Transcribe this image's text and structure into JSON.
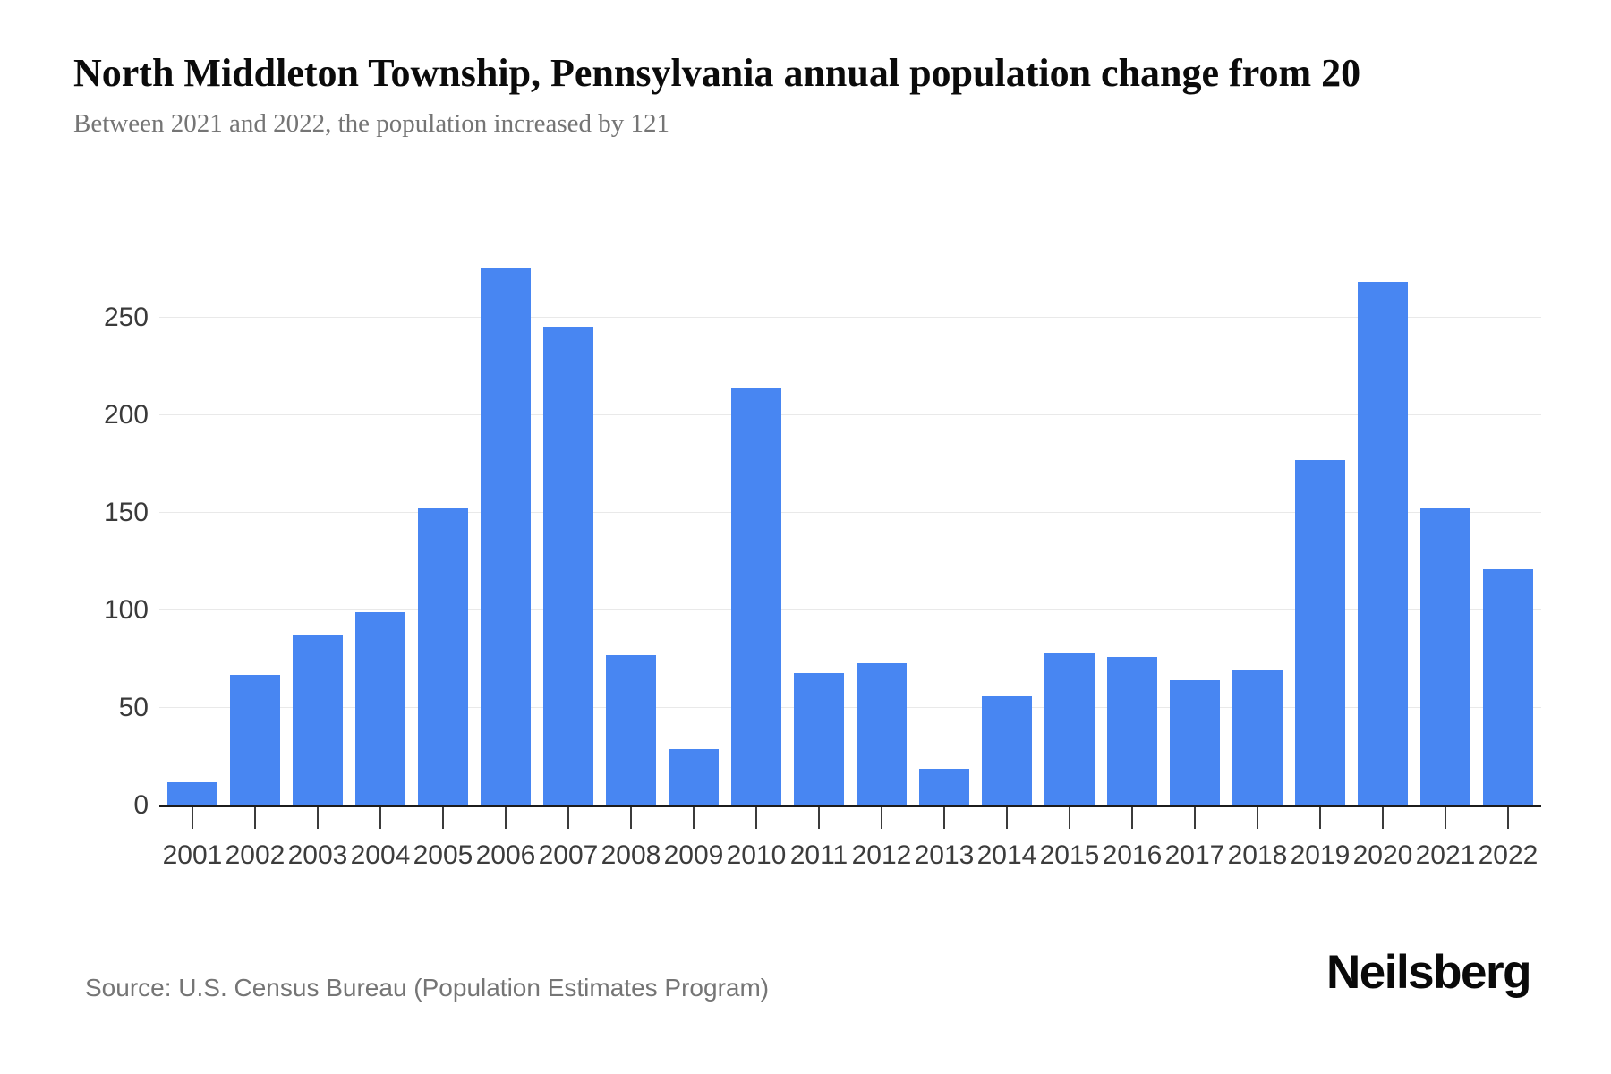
{
  "header": {
    "title": "North Middleton Township, Pennsylvania annual population change from 20",
    "subtitle": "Between 2021 and 2022, the population increased by 121"
  },
  "chart_data": {
    "type": "bar",
    "categories": [
      "2001",
      "2002",
      "2003",
      "2004",
      "2005",
      "2006",
      "2007",
      "2008",
      "2009",
      "2010",
      "2011",
      "2012",
      "2013",
      "2014",
      "2015",
      "2016",
      "2017",
      "2018",
      "2019",
      "2020",
      "2021",
      "2022"
    ],
    "values": [
      12,
      67,
      87,
      99,
      152,
      275,
      245,
      77,
      29,
      214,
      68,
      73,
      19,
      56,
      78,
      76,
      64,
      69,
      177,
      268,
      152,
      121
    ],
    "title": "North Middleton Township, Pennsylvania annual population change from 20",
    "xlabel": "",
    "ylabel": "",
    "y_ticks": [
      0,
      50,
      100,
      150,
      200,
      250
    ],
    "ylim": [
      0,
      275
    ],
    "grid": true,
    "legend": "none",
    "bar_color": "#4886f2"
  },
  "footer": {
    "source": "Source: U.S. Census Bureau (Population Estimates Program)",
    "brand": "Neilsberg"
  },
  "colors": {
    "bar": "#4886f2",
    "gridline": "#e9e9e9",
    "axis": "#1c1c1c",
    "tick_label": "#3a3a3a",
    "subtitle_text": "#757575",
    "source_text": "#757575",
    "title_text": "#0b0b0b"
  }
}
